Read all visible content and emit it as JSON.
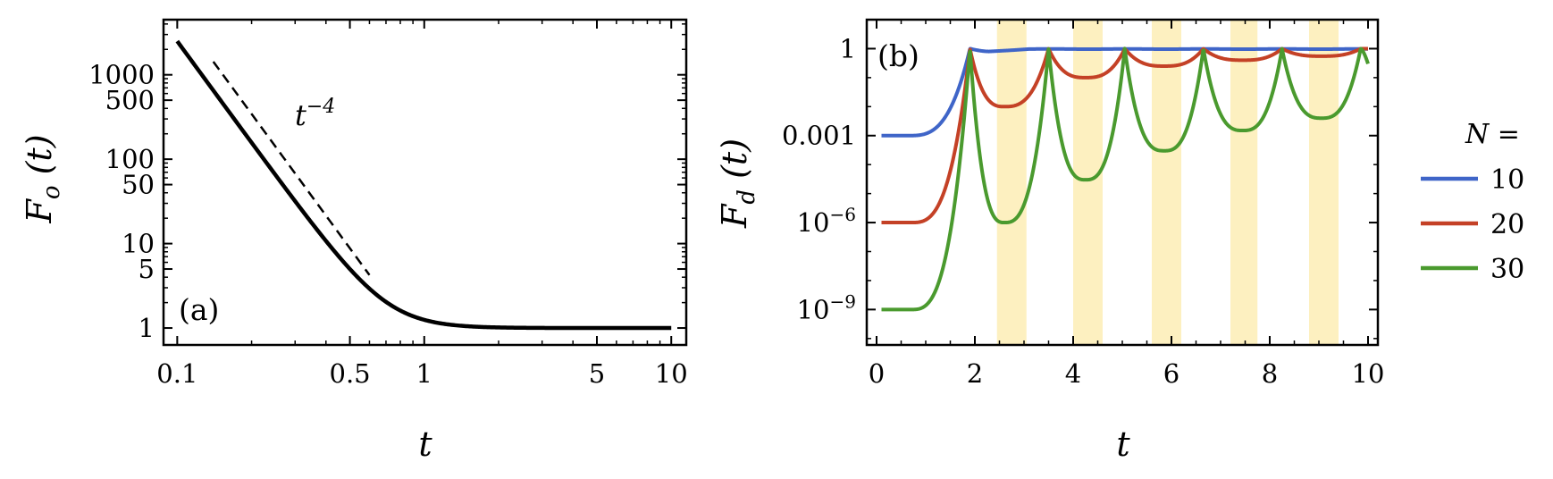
{
  "chart_data": [
    {
      "panel": "(a)",
      "type": "line",
      "xlabel": "t",
      "ylabel": "F_o(t)",
      "xscale": "log",
      "yscale": "log",
      "xlim": [
        0.088,
        11.5
      ],
      "ylim": [
        0.63,
        4500
      ],
      "xticks": [
        {
          "value": 0.1,
          "label": "0.1"
        },
        {
          "value": 0.5,
          "label": "0.5"
        },
        {
          "value": 1,
          "label": "1"
        },
        {
          "value": 5,
          "label": "5"
        },
        {
          "value": 10,
          "label": "10"
        }
      ],
      "yticks": [
        {
          "value": 1,
          "label": "1"
        },
        {
          "value": 5,
          "label": "5"
        },
        {
          "value": 10,
          "label": "10"
        },
        {
          "value": 50,
          "label": "50"
        },
        {
          "value": 100,
          "label": "100"
        },
        {
          "value": 500,
          "label": "500"
        },
        {
          "value": 1000,
          "label": "1000"
        }
      ],
      "series": [
        {
          "style": "solid",
          "color": "#000000",
          "formula": "1 + 0.25 * t^-4",
          "x": [
            0.1,
            0.15,
            0.2,
            0.3,
            0.5,
            0.7,
            1,
            1.5,
            2,
            3,
            5,
            10
          ],
          "y": [
            2501,
            494.8,
            157.3,
            31.86,
            5.0,
            2.04,
            1.25,
            1.05,
            1.02,
            1.0,
            1.0,
            1.0
          ]
        },
        {
          "style": "dashed",
          "color": "#000000",
          "label": "t^-4",
          "formula": "0.55 * t^-4",
          "x": [
            0.14,
            0.6
          ],
          "y": [
            1432,
            4.24
          ]
        }
      ],
      "annotations": [
        {
          "text_base": "t",
          "text_sup": "−4"
        }
      ],
      "grid": false
    },
    {
      "panel": "(b)",
      "type": "line",
      "xlabel": "t",
      "ylabel": "F_d(t)",
      "xscale": "linear",
      "yscale": "log",
      "xlim": [
        -0.2,
        10.2
      ],
      "ylim": [
        6e-11,
        10
      ],
      "xticks": [
        {
          "value": 0,
          "label": "0"
        },
        {
          "value": 2,
          "label": "2"
        },
        {
          "value": 4,
          "label": "4"
        },
        {
          "value": 6,
          "label": "6"
        },
        {
          "value": 8,
          "label": "8"
        },
        {
          "value": 10,
          "label": "10"
        }
      ],
      "yticks": [
        {
          "value": 1,
          "label": "1",
          "exp": null
        },
        {
          "value": 0.001,
          "label": "0.001",
          "exp": null
        },
        {
          "value": 1e-06,
          "label": "10",
          "exp": "−6"
        },
        {
          "value": 1e-09,
          "label": "10",
          "exp": "−9"
        }
      ],
      "shaded_bands": [
        [
          2.45,
          3.05
        ],
        [
          4.0,
          4.6
        ],
        [
          5.6,
          6.2
        ],
        [
          7.2,
          7.75
        ],
        [
          8.8,
          9.4
        ]
      ],
      "shade_color": "#fdf0c0",
      "legend": {
        "title": "N =",
        "placement": "right",
        "entries": [
          "10",
          "20",
          "30"
        ]
      },
      "series": [
        {
          "name": "10",
          "color": "#3f65c8",
          "start": {
            "t": 0.1,
            "value": 0.001
          },
          "revival_time": 1.9,
          "revival_times": [
            1.9
          ],
          "minima": [
            {
              "t": 2.3,
              "value": 0.8
            }
          ],
          "late_min_value": 0.97,
          "grow_width": 1.25
        },
        {
          "name": "20",
          "color": "#c44126",
          "start": {
            "t": 0.1,
            "value": 1e-06
          },
          "revival_times": [
            1.9,
            3.5,
            5.05,
            6.65,
            8.25,
            9.85
          ],
          "minima": [
            {
              "t": 2.6,
              "value": 0.01
            },
            {
              "t": 4.25,
              "value": 0.1
            },
            {
              "t": 5.85,
              "value": 0.25
            },
            {
              "t": 7.45,
              "value": 0.4
            },
            {
              "t": 9.05,
              "value": 0.55
            }
          ],
          "grow_width": 1.2
        },
        {
          "name": "30",
          "color": "#4a9a2e",
          "start": {
            "t": 0.1,
            "value": 1e-09
          },
          "revival_times": [
            1.9,
            3.5,
            5.05,
            6.65,
            8.25,
            9.85
          ],
          "minima": [
            {
              "t": 2.6,
              "value": 1e-06
            },
            {
              "t": 4.25,
              "value": 3e-05
            },
            {
              "t": 5.85,
              "value": 0.0003
            },
            {
              "t": 7.45,
              "value": 0.0015
            },
            {
              "t": 9.05,
              "value": 0.004
            }
          ],
          "end": {
            "t": 10,
            "value": 0.3
          },
          "grow_width": 1.2
        }
      ],
      "grid": false
    }
  ]
}
